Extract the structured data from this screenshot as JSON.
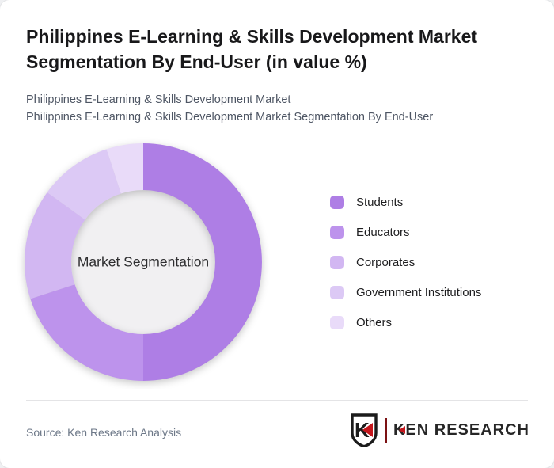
{
  "header": {
    "title_lines": [
      "Philippines E-Learning & Skills Development Market",
      "Segmentation By End-User (in value %)"
    ],
    "subtitle_lines": [
      "Philippines E-Learning & Skills Development Market",
      "Philippines E-Learning & Skills Development Market Segmentation By End-User"
    ]
  },
  "chart_data": {
    "type": "pie",
    "variant": "donut",
    "title": "Philippines E-Learning & Skills Development Market Segmentation By End-User (in value %)",
    "units": "value %",
    "center_label": "Market Segmentation",
    "start_angle_deg": 0,
    "direction": "clockwise",
    "legend_position": "right",
    "hole_color": "#f1f0f2",
    "segments": [
      {
        "label": "Students",
        "value": 50,
        "color": "#ae7ee5"
      },
      {
        "label": "Educators",
        "value": 20,
        "color": "#bd93ec"
      },
      {
        "label": "Corporates",
        "value": 15,
        "color": "#d2b7f2"
      },
      {
        "label": "Government Institutions",
        "value": 10,
        "color": "#dcc9f5"
      },
      {
        "label": "Others",
        "value": 5,
        "color": "#e9dbf9"
      }
    ]
  },
  "footer": {
    "source": "Source: Ken Research Analysis",
    "logo": {
      "badge_letter": "K",
      "text": "KEN RESEARCH",
      "accent_color": "#c4161c"
    }
  }
}
